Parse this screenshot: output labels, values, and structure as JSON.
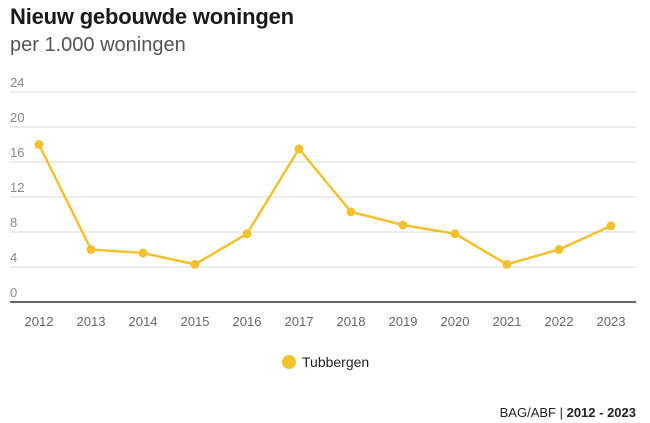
{
  "title": "Nieuw gebouwde woningen",
  "subtitle": "per 1.000 woningen",
  "colors": {
    "series": "#f2c12e",
    "grid": "#d9d9d9",
    "axis": "#333333",
    "tick_text": "#888888"
  },
  "chart_data": {
    "type": "line",
    "x": [
      "2012",
      "2013",
      "2014",
      "2015",
      "2016",
      "2017",
      "2018",
      "2019",
      "2020",
      "2021",
      "2022",
      "2023"
    ],
    "series": [
      {
        "name": "Tubbergen",
        "values": [
          18.0,
          6.0,
          5.6,
          4.3,
          7.8,
          17.5,
          10.3,
          8.8,
          7.8,
          4.3,
          6.0,
          8.7
        ]
      }
    ],
    "y_ticks": [
      "0",
      "4",
      "8",
      "12",
      "16",
      "20",
      "24"
    ],
    "ylim": [
      0,
      24
    ],
    "grid": true,
    "legend": "bottom-center"
  },
  "legend": {
    "label": "Tubbergen"
  },
  "source": {
    "name": "BAG/ABF",
    "separator": " | ",
    "period": "2012 - 2023"
  }
}
